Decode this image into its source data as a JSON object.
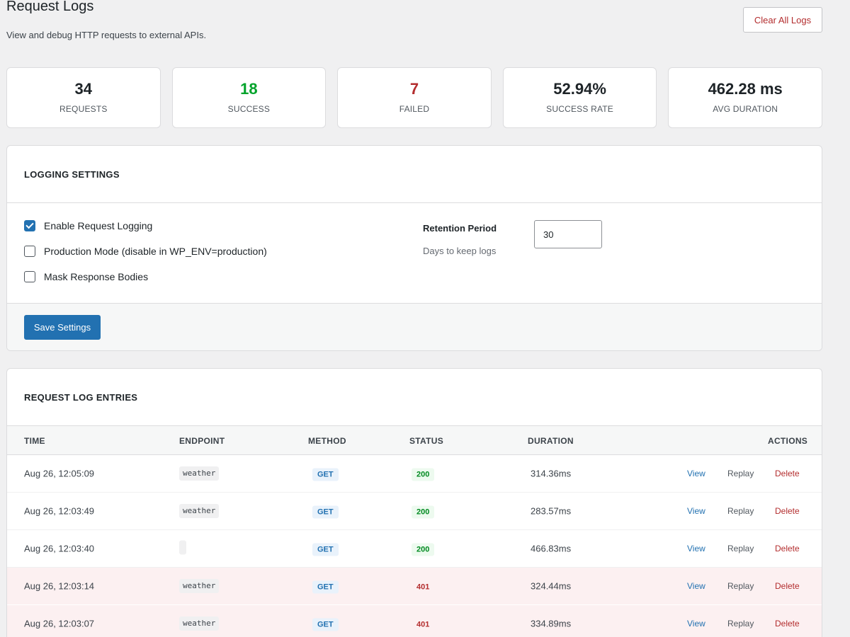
{
  "header": {
    "title": "Request Logs",
    "description": "View and debug HTTP requests to external APIs.",
    "clear_label": "Clear All Logs"
  },
  "stats": [
    {
      "value": "34",
      "label": "REQUESTS"
    },
    {
      "value": "18",
      "label": "SUCCESS"
    },
    {
      "value": "7",
      "label": "FAILED"
    },
    {
      "value": "52.94%",
      "label": "SUCCESS RATE"
    },
    {
      "value": "462.28 ms",
      "label": "AVG DURATION"
    }
  ],
  "settings": {
    "title": "LOGGING SETTINGS",
    "enable_logging": {
      "label": "Enable Request Logging",
      "checked": true
    },
    "production_mode": {
      "label": "Production Mode (disable in WP_ENV=production)",
      "checked": false
    },
    "mask_bodies": {
      "label": "Mask Response Bodies",
      "checked": false
    },
    "retention_label": "Retention Period",
    "retention_help": "Days to keep logs",
    "retention_value": "30",
    "save_label": "Save Settings"
  },
  "log": {
    "title": "REQUEST LOG ENTRIES",
    "columns": {
      "time": "TIME",
      "endpoint": "ENDPOINT",
      "method": "METHOD",
      "status": "STATUS",
      "duration": "DURATION",
      "actions": "ACTIONS"
    },
    "actions": {
      "view": "View",
      "replay": "Replay",
      "delete": "Delete"
    },
    "rows": [
      {
        "time": "Aug 26, 12:05:09",
        "endpoint": "weather",
        "method": "GET",
        "status": "200",
        "duration": "314.36ms"
      },
      {
        "time": "Aug 26, 12:03:49",
        "endpoint": "weather",
        "method": "GET",
        "status": "200",
        "duration": "283.57ms"
      },
      {
        "time": "Aug 26, 12:03:40",
        "endpoint": "",
        "method": "GET",
        "status": "200",
        "duration": "466.83ms"
      },
      {
        "time": "Aug 26, 12:03:14",
        "endpoint": "weather",
        "method": "GET",
        "status": "401",
        "duration": "324.44ms"
      },
      {
        "time": "Aug 26, 12:03:07",
        "endpoint": "weather",
        "method": "GET",
        "status": "401",
        "duration": "334.89ms"
      }
    ]
  }
}
